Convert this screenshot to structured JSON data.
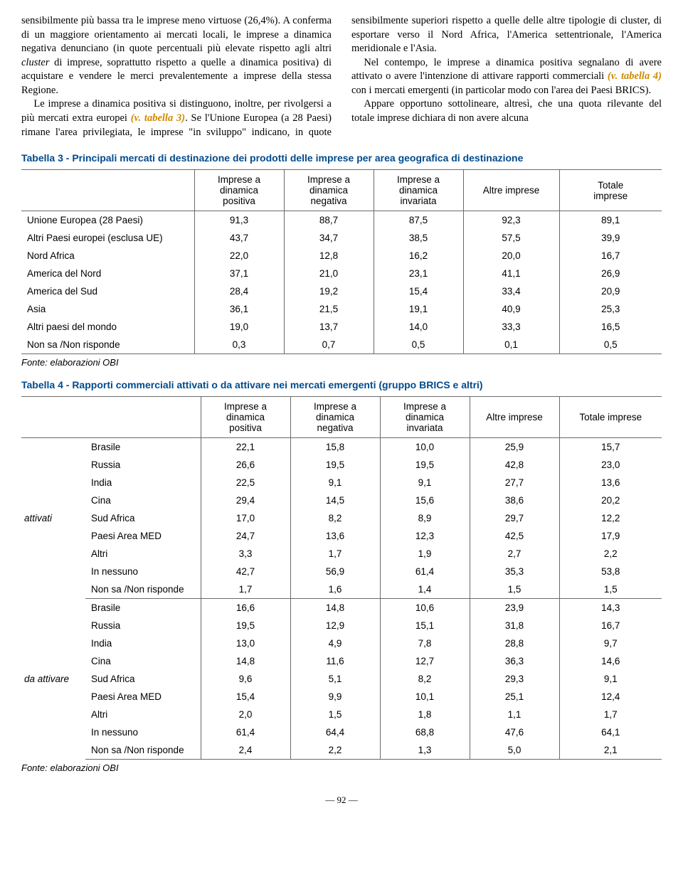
{
  "paragraphs": {
    "p1a": "sensibilmente più bassa tra le imprese meno virtuose (26,4%). A conferma di un maggiore orientamento ai mercati locali, le imprese a dinamica negativa denunciano (in quote percentuali più elevate rispetto agli altri ",
    "cluster": "cluster",
    "p1b": " di imprese, soprattutto rispetto a quelle a dinamica positiva) di acquistare e vendere le merci prevalentemente a imprese della stessa Regione.",
    "p2a": "Le imprese a dinamica positiva si distinguono, inoltre, per rivolgersi a più mercati extra europei ",
    "ref3": "(v. tabella 3)",
    "p2b": ". Se l'Unione Europea (a 28 Paesi) rimane l'area privilegiata, le imprese \"in sviluppo\" indicano, in quote sensibilmente superiori rispetto a quelle delle altre tipologie di cluster, di esportare verso il Nord Africa, l'America settentrionale, l'America meridionale e l'Asia.",
    "p3a": "Nel contempo, le imprese a dinamica positiva segnalano di avere attivato o avere l'intenzione di attivare rapporti commerciali ",
    "ref4": "(v. tabella 4)",
    "p3b": " con i mercati emergenti (in particolar modo con l'area dei Paesi BRICS).",
    "p4": "Appare opportuno sottolineare, altresì, che una quota rilevante del totale imprese dichiara di non avere alcuna"
  },
  "table3": {
    "title": "Tabella 3 - Principali mercati di destinazione dei prodotti delle imprese per area geografica di destinazione",
    "columns": [
      "Imprese a\ndinamica\npositiva",
      "Imprese a\ndinamica\nnegativa",
      "Imprese a\ndinamica\ninvariata",
      "Altre imprese",
      "Totale\nimprese"
    ],
    "rows": [
      {
        "label": "Unione Europea (28 Paesi)",
        "vals": [
          "91,3",
          "88,7",
          "87,5",
          "92,3",
          "89,1"
        ]
      },
      {
        "label": "Altri Paesi europei (esclusa UE)",
        "vals": [
          "43,7",
          "34,7",
          "38,5",
          "57,5",
          "39,9"
        ]
      },
      {
        "label": "Nord Africa",
        "vals": [
          "22,0",
          "12,8",
          "16,2",
          "20,0",
          "16,7"
        ]
      },
      {
        "label": "America del Nord",
        "vals": [
          "37,1",
          "21,0",
          "23,1",
          "41,1",
          "26,9"
        ]
      },
      {
        "label": "America del Sud",
        "vals": [
          "28,4",
          "19,2",
          "15,4",
          "33,4",
          "20,9"
        ]
      },
      {
        "label": "Asia",
        "vals": [
          "36,1",
          "21,5",
          "19,1",
          "40,9",
          "25,3"
        ]
      },
      {
        "label": "Altri paesi del mondo",
        "vals": [
          "19,0",
          "13,7",
          "14,0",
          "33,3",
          "16,5"
        ]
      },
      {
        "label": "Non sa /Non risponde",
        "vals": [
          "0,3",
          "0,7",
          "0,5",
          "0,1",
          "0,5"
        ]
      }
    ],
    "source": "Fonte: elaborazioni OBI"
  },
  "table4": {
    "title": "Tabella 4 - Rapporti commerciali attivati o da attivare nei mercati emergenti (gruppo BRICS e altri)",
    "columns": [
      "Imprese a\ndinamica\npositiva",
      "Imprese a\ndinamica\nnegativa",
      "Imprese a\ndinamica\ninvariata",
      "Altre imprese",
      "Totale imprese"
    ],
    "groups": [
      {
        "label": "attivati",
        "rows": [
          {
            "label": "Brasile",
            "vals": [
              "22,1",
              "15,8",
              "10,0",
              "25,9",
              "15,7"
            ]
          },
          {
            "label": "Russia",
            "vals": [
              "26,6",
              "19,5",
              "19,5",
              "42,8",
              "23,0"
            ]
          },
          {
            "label": "India",
            "vals": [
              "22,5",
              "9,1",
              "9,1",
              "27,7",
              "13,6"
            ]
          },
          {
            "label": "Cina",
            "vals": [
              "29,4",
              "14,5",
              "15,6",
              "38,6",
              "20,2"
            ]
          },
          {
            "label": "Sud Africa",
            "vals": [
              "17,0",
              "8,2",
              "8,9",
              "29,7",
              "12,2"
            ]
          },
          {
            "label": "Paesi Area MED",
            "vals": [
              "24,7",
              "13,6",
              "12,3",
              "42,5",
              "17,9"
            ]
          },
          {
            "label": "Altri",
            "vals": [
              "3,3",
              "1,7",
              "1,9",
              "2,7",
              "2,2"
            ]
          },
          {
            "label": "In nessuno",
            "vals": [
              "42,7",
              "56,9",
              "61,4",
              "35,3",
              "53,8"
            ]
          },
          {
            "label": "Non sa /Non risponde",
            "vals": [
              "1,7",
              "1,6",
              "1,4",
              "1,5",
              "1,5"
            ]
          }
        ]
      },
      {
        "label": "da attivare",
        "rows": [
          {
            "label": "Brasile",
            "vals": [
              "16,6",
              "14,8",
              "10,6",
              "23,9",
              "14,3"
            ]
          },
          {
            "label": "Russia",
            "vals": [
              "19,5",
              "12,9",
              "15,1",
              "31,8",
              "16,7"
            ]
          },
          {
            "label": "India",
            "vals": [
              "13,0",
              "4,9",
              "7,8",
              "28,8",
              "9,7"
            ]
          },
          {
            "label": "Cina",
            "vals": [
              "14,8",
              "11,6",
              "12,7",
              "36,3",
              "14,6"
            ]
          },
          {
            "label": "Sud Africa",
            "vals": [
              "9,6",
              "5,1",
              "8,2",
              "29,3",
              "9,1"
            ]
          },
          {
            "label": "Paesi Area MED",
            "vals": [
              "15,4",
              "9,9",
              "10,1",
              "25,1",
              "12,4"
            ]
          },
          {
            "label": "Altri",
            "vals": [
              "2,0",
              "1,5",
              "1,8",
              "1,1",
              "1,7"
            ]
          },
          {
            "label": "In nessuno",
            "vals": [
              "61,4",
              "64,4",
              "68,8",
              "47,6",
              "64,1"
            ]
          },
          {
            "label": "Non sa /Non risponde",
            "vals": [
              "2,4",
              "2,2",
              "1,3",
              "5,0",
              "2,1"
            ]
          }
        ]
      }
    ],
    "source": "Fonte: elaborazioni OBI"
  },
  "pageNumber": "— 92 —",
  "colors": {
    "title": "#004b8d",
    "ref": "#d18a00",
    "rule": "#6a6a6a"
  }
}
